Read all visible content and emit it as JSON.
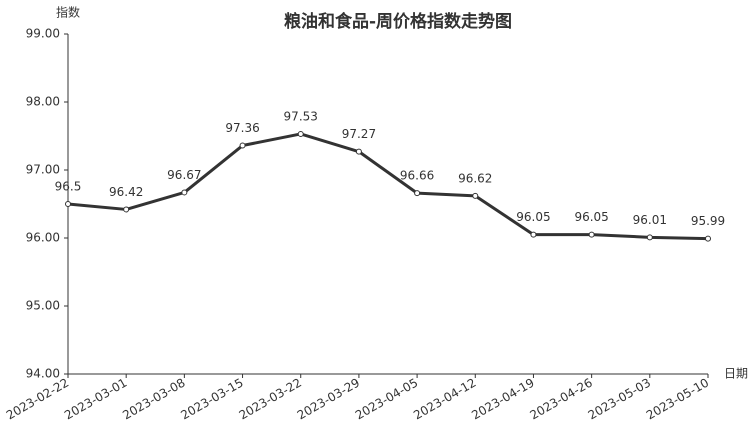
{
  "chart_data": {
    "type": "line",
    "title": "粮油和食品-周价格指数走势图",
    "y_label": "指数",
    "x_label": "日期",
    "categories": [
      "2023-02-22",
      "2023-03-01",
      "2023-03-08",
      "2023-03-15",
      "2023-03-22",
      "2023-03-29",
      "2023-04-05",
      "2023-04-12",
      "2023-04-19",
      "2023-04-26",
      "2023-05-03",
      "2023-05-10"
    ],
    "values": [
      96.5,
      96.42,
      96.67,
      97.36,
      97.53,
      97.27,
      96.66,
      96.62,
      96.05,
      96.05,
      96.01,
      95.99
    ],
    "color": "#333333",
    "ylim": [
      94,
      99
    ],
    "yticks": [
      {
        "value": 94,
        "label": "94.00"
      },
      {
        "value": 95,
        "label": "95.00"
      },
      {
        "value": 96,
        "label": "96.00"
      },
      {
        "value": 97,
        "label": "97.00"
      },
      {
        "value": 98,
        "label": "98.00"
      },
      {
        "value": 99,
        "label": "99.00"
      }
    ],
    "grid": false
  }
}
